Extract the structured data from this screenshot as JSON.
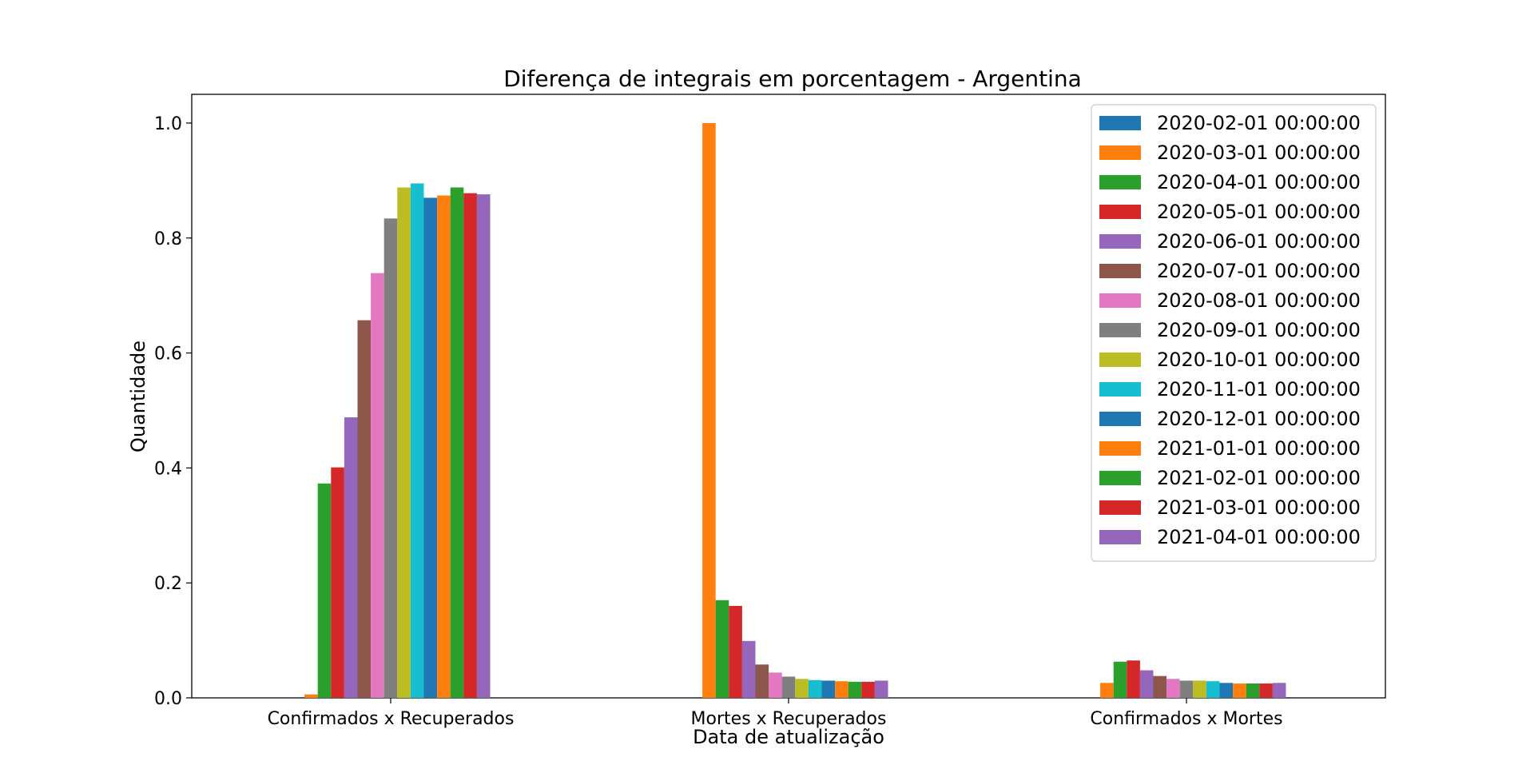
{
  "chart_data": {
    "type": "bar",
    "title": "Diferença de integrais em porcentagem - Argentina",
    "xlabel": "Data de atualização",
    "ylabel": "Quantidade",
    "ylim": [
      0,
      1.05
    ],
    "yticks": [
      "0.0",
      "0.2",
      "0.4",
      "0.6",
      "0.8",
      "1.0"
    ],
    "categories": [
      "Confirmados x Recuperados",
      "Mortes x Recuperados",
      "Confirmados x Mortes"
    ],
    "legend_position": "top-right",
    "grid": false,
    "series": [
      {
        "name": "2020-02-01 00:00:00",
        "color": "#1f77b4",
        "values": [
          0.0,
          0.0,
          0.0
        ]
      },
      {
        "name": "2020-03-01 00:00:00",
        "color": "#ff7f0e",
        "values": [
          0.006,
          1.0,
          0.026
        ]
      },
      {
        "name": "2020-04-01 00:00:00",
        "color": "#2ca02c",
        "values": [
          0.373,
          0.17,
          0.063
        ]
      },
      {
        "name": "2020-05-01 00:00:00",
        "color": "#d62728",
        "values": [
          0.401,
          0.16,
          0.065
        ]
      },
      {
        "name": "2020-06-01 00:00:00",
        "color": "#9467bd",
        "values": [
          0.488,
          0.099,
          0.048
        ]
      },
      {
        "name": "2020-07-01 00:00:00",
        "color": "#8c564b",
        "values": [
          0.657,
          0.058,
          0.038
        ]
      },
      {
        "name": "2020-08-01 00:00:00",
        "color": "#e377c2",
        "values": [
          0.739,
          0.044,
          0.033
        ]
      },
      {
        "name": "2020-09-01 00:00:00",
        "color": "#7f7f7f",
        "values": [
          0.834,
          0.037,
          0.03
        ]
      },
      {
        "name": "2020-10-01 00:00:00",
        "color": "#bcbd22",
        "values": [
          0.888,
          0.033,
          0.03
        ]
      },
      {
        "name": "2020-11-01 00:00:00",
        "color": "#17becf",
        "values": [
          0.895,
          0.031,
          0.029
        ]
      },
      {
        "name": "2020-12-01 00:00:00",
        "color": "#1f77b4",
        "values": [
          0.87,
          0.03,
          0.026
        ]
      },
      {
        "name": "2021-01-01 00:00:00",
        "color": "#ff7f0e",
        "values": [
          0.874,
          0.029,
          0.025
        ]
      },
      {
        "name": "2021-02-01 00:00:00",
        "color": "#2ca02c",
        "values": [
          0.888,
          0.028,
          0.025
        ]
      },
      {
        "name": "2021-03-01 00:00:00",
        "color": "#d62728",
        "values": [
          0.878,
          0.028,
          0.025
        ]
      },
      {
        "name": "2021-04-01 00:00:00",
        "color": "#9467bd",
        "values": [
          0.876,
          0.03,
          0.026
        ]
      }
    ]
  }
}
